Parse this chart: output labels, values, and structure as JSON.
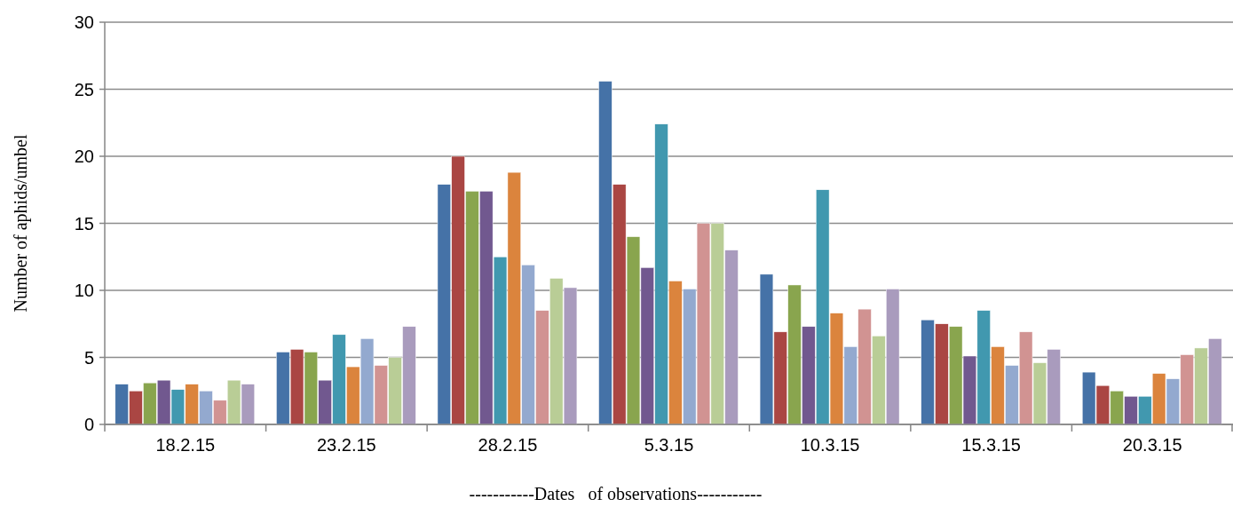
{
  "chart_data": {
    "type": "bar",
    "xlabel": "-----------Dates   of observations-----------",
    "ylabel": "Number of aphids/umbel",
    "categories": [
      "18.2.15",
      "23.2.15",
      "28.2.15",
      "5.3.15",
      "10.3.15",
      "15.3.15",
      "20.3.15"
    ],
    "series": [
      {
        "color": "#4572a7",
        "values": [
          3.0,
          5.4,
          17.9,
          25.6,
          11.2,
          7.8,
          3.9
        ]
      },
      {
        "color": "#aa4643",
        "values": [
          2.5,
          5.6,
          20.0,
          17.9,
          6.9,
          7.5,
          2.9
        ]
      },
      {
        "color": "#89a54e",
        "values": [
          3.1,
          5.4,
          17.4,
          14.0,
          10.4,
          7.3,
          2.5
        ]
      },
      {
        "color": "#71588f",
        "values": [
          3.3,
          3.3,
          17.4,
          11.7,
          7.3,
          5.1,
          2.1
        ]
      },
      {
        "color": "#4198af",
        "values": [
          2.6,
          6.7,
          12.5,
          22.4,
          17.5,
          8.5,
          2.1
        ]
      },
      {
        "color": "#db843d",
        "values": [
          3.0,
          4.3,
          18.8,
          10.7,
          8.3,
          5.8,
          3.8
        ]
      },
      {
        "color": "#93a9cf",
        "values": [
          2.5,
          6.4,
          11.9,
          10.1,
          5.8,
          4.4,
          3.4
        ]
      },
      {
        "color": "#d19392",
        "values": [
          1.8,
          4.4,
          8.5,
          15.0,
          8.6,
          6.9,
          5.2
        ]
      },
      {
        "color": "#b9cd96",
        "values": [
          3.3,
          5.0,
          10.9,
          15.0,
          6.6,
          4.6,
          5.7
        ]
      },
      {
        "color": "#a99bbd",
        "values": [
          3.0,
          7.3,
          10.2,
          13.0,
          10.1,
          5.6,
          6.4
        ]
      }
    ],
    "ylim": [
      0,
      30
    ],
    "yticks": [
      0,
      5,
      10,
      15,
      20,
      25,
      30
    ],
    "grid": "y"
  }
}
